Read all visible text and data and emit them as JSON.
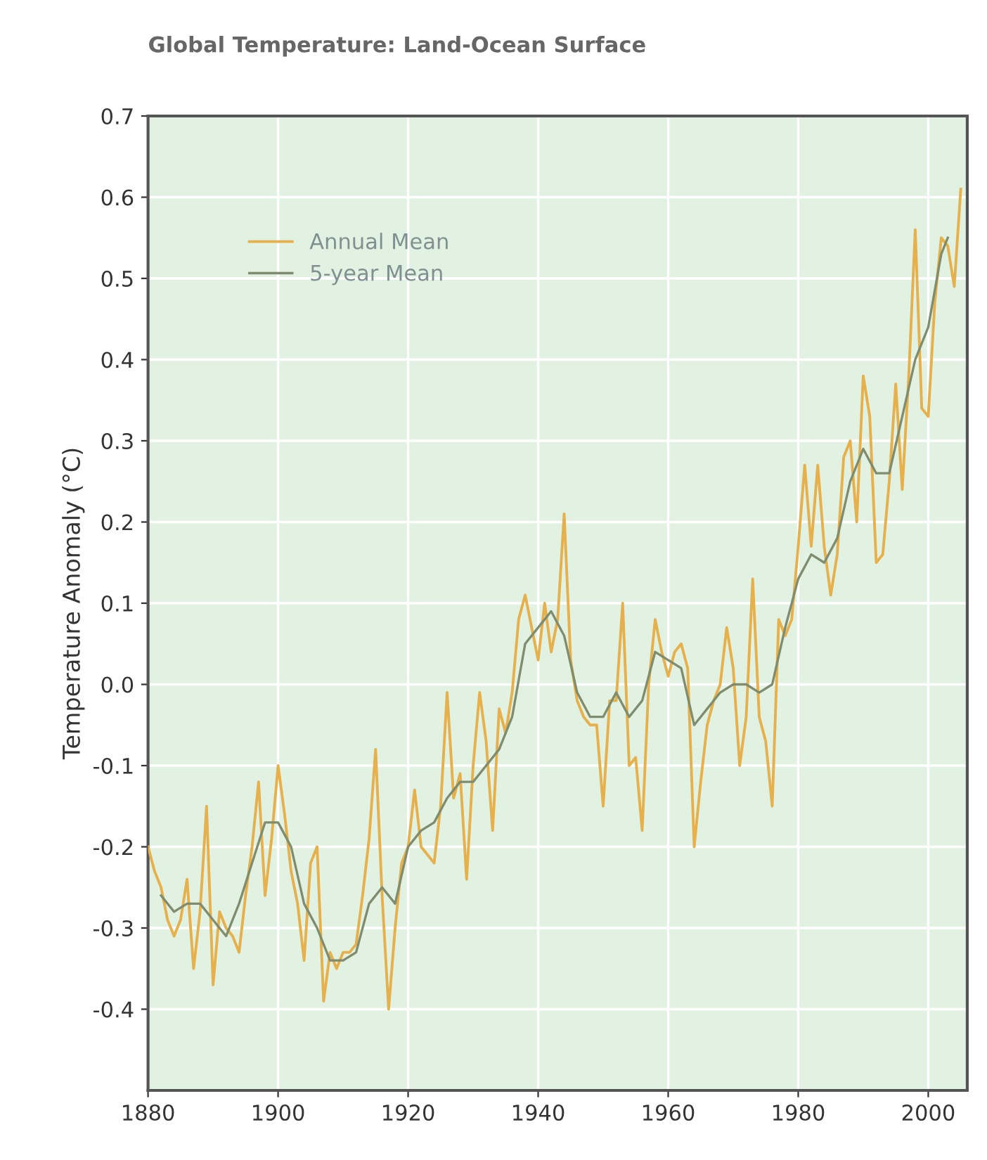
{
  "chart_data": {
    "type": "line",
    "title": "Global Temperature: Land-Ocean Surface",
    "ylabel": "Temperature Anomaly (°C)",
    "xlim": [
      1880,
      2006
    ],
    "xticks": [
      1880,
      1900,
      1920,
      1940,
      1960,
      1980,
      2000
    ],
    "ylim": [
      -0.5,
      0.7
    ],
    "yticks": [
      -0.4,
      -0.3,
      -0.2,
      -0.1,
      {
        "value": 0,
        "label": "0.0"
      },
      0.1,
      0.2,
      0.3,
      0.4,
      0.5,
      0.6,
      0.7
    ],
    "grid": true,
    "legend": "top left",
    "marker": "none",
    "line_style": "solid",
    "series": [
      {
        "name": "Annual Mean",
        "color": "#e6b04c",
        "x": [
          1880,
          1881,
          1882,
          1883,
          1884,
          1885,
          1886,
          1887,
          1888,
          1889,
          1890,
          1891,
          1892,
          1893,
          1894,
          1895,
          1896,
          1897,
          1898,
          1899,
          1900,
          1901,
          1902,
          1903,
          1904,
          1905,
          1906,
          1907,
          1908,
          1909,
          1910,
          1911,
          1912,
          1913,
          1914,
          1915,
          1916,
          1917,
          1918,
          1919,
          1920,
          1921,
          1922,
          1923,
          1924,
          1925,
          1926,
          1927,
          1928,
          1929,
          1930,
          1931,
          1932,
          1933,
          1934,
          1935,
          1936,
          1937,
          1938,
          1939,
          1940,
          1941,
          1942,
          1943,
          1944,
          1945,
          1946,
          1947,
          1948,
          1949,
          1950,
          1951,
          1952,
          1953,
          1954,
          1955,
          1956,
          1957,
          1958,
          1959,
          1960,
          1961,
          1962,
          1963,
          1964,
          1965,
          1966,
          1967,
          1968,
          1969,
          1970,
          1971,
          1972,
          1973,
          1974,
          1975,
          1976,
          1977,
          1978,
          1979,
          1980,
          1981,
          1982,
          1983,
          1984,
          1985,
          1986,
          1987,
          1988,
          1989,
          1990,
          1991,
          1992,
          1993,
          1994,
          1995,
          1996,
          1997,
          1998,
          1999,
          2000,
          2001,
          2002,
          2003,
          2004,
          2005
        ],
        "values": [
          -0.2,
          -0.23,
          -0.25,
          -0.29,
          -0.31,
          -0.29,
          -0.24,
          -0.35,
          -0.28,
          -0.15,
          -0.37,
          -0.28,
          -0.3,
          -0.31,
          -0.33,
          -0.26,
          -0.2,
          -0.12,
          -0.26,
          -0.19,
          -0.1,
          -0.16,
          -0.23,
          -0.27,
          -0.34,
          -0.22,
          -0.2,
          -0.39,
          -0.33,
          -0.35,
          -0.33,
          -0.33,
          -0.32,
          -0.26,
          -0.19,
          -0.08,
          -0.26,
          -0.4,
          -0.3,
          -0.22,
          -0.2,
          -0.13,
          -0.2,
          -0.21,
          -0.22,
          -0.15,
          -0.01,
          -0.14,
          -0.11,
          -0.24,
          -0.1,
          -0.01,
          -0.07,
          -0.18,
          -0.03,
          -0.06,
          -0.01,
          0.08,
          0.11,
          0.07,
          0.03,
          0.1,
          0.04,
          0.08,
          0.21,
          0.03,
          -0.02,
          -0.04,
          -0.05,
          -0.05,
          -0.15,
          -0.02,
          -0.02,
          0.1,
          -0.1,
          -0.09,
          -0.18,
          0.0,
          0.08,
          0.04,
          0.01,
          0.04,
          0.05,
          0.02,
          -0.2,
          -0.12,
          -0.05,
          -0.02,
          0.0,
          0.07,
          0.02,
          -0.1,
          -0.04,
          0.13,
          -0.04,
          -0.07,
          -0.15,
          0.08,
          0.06,
          0.08,
          0.17,
          0.27,
          0.17,
          0.27,
          0.17,
          0.11,
          0.16,
          0.28,
          0.3,
          0.2,
          0.38,
          0.33,
          0.15,
          0.16,
          0.25,
          0.37,
          0.24,
          0.38,
          0.56,
          0.34,
          0.33,
          0.47,
          0.55,
          0.54,
          0.49,
          0.61
        ]
      },
      {
        "name": "5-year Mean",
        "color": "#7f8c6e",
        "x": [
          1882,
          1884,
          1886,
          1888,
          1890,
          1892,
          1894,
          1896,
          1898,
          1900,
          1902,
          1904,
          1906,
          1908,
          1910,
          1912,
          1914,
          1916,
          1918,
          1920,
          1922,
          1924,
          1926,
          1928,
          1930,
          1932,
          1934,
          1936,
          1938,
          1940,
          1942,
          1944,
          1946,
          1948,
          1950,
          1952,
          1954,
          1956,
          1958,
          1960,
          1962,
          1964,
          1966,
          1968,
          1970,
          1972,
          1974,
          1976,
          1978,
          1980,
          1982,
          1984,
          1986,
          1988,
          1990,
          1992,
          1994,
          1996,
          1998,
          2000,
          2002,
          2003
        ],
        "values": [
          -0.26,
          -0.28,
          -0.27,
          -0.27,
          -0.29,
          -0.31,
          -0.27,
          -0.22,
          -0.17,
          -0.17,
          -0.2,
          -0.27,
          -0.3,
          -0.34,
          -0.34,
          -0.33,
          -0.27,
          -0.25,
          -0.27,
          -0.2,
          -0.18,
          -0.17,
          -0.14,
          -0.12,
          -0.12,
          -0.1,
          -0.08,
          -0.04,
          0.05,
          0.07,
          0.09,
          0.06,
          -0.01,
          -0.04,
          -0.04,
          -0.01,
          -0.04,
          -0.02,
          0.04,
          0.03,
          0.02,
          -0.05,
          -0.03,
          -0.01,
          0.0,
          0.0,
          -0.01,
          0.0,
          0.07,
          0.13,
          0.16,
          0.15,
          0.18,
          0.25,
          0.29,
          0.26,
          0.26,
          0.33,
          0.4,
          0.44,
          0.53,
          0.55
        ]
      }
    ]
  }
}
